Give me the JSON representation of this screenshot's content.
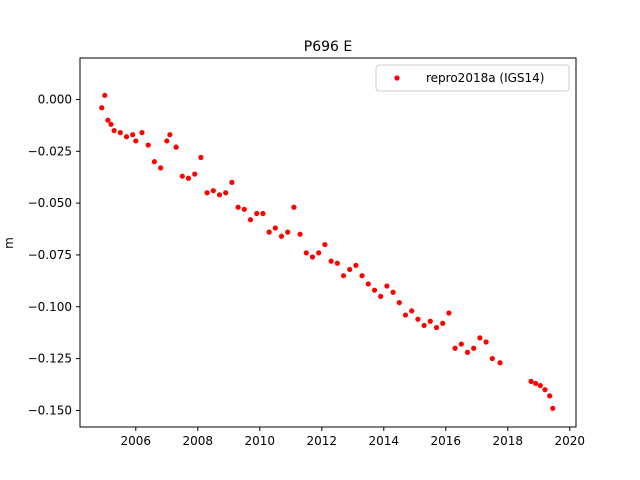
{
  "chart_data": {
    "type": "scatter",
    "title": "P696 E",
    "xlabel": "",
    "ylabel": "m",
    "xlim": [
      2004.2,
      2020.2
    ],
    "ylim": [
      -0.158,
      0.02
    ],
    "x_ticks": [
      2006,
      2008,
      2010,
      2012,
      2014,
      2016,
      2018,
      2020
    ],
    "x_tick_labels": [
      "2006",
      "2008",
      "2010",
      "2012",
      "2014",
      "2016",
      "2018",
      "2020"
    ],
    "y_ticks": [
      0.0,
      -0.025,
      -0.05,
      -0.075,
      -0.1,
      -0.125,
      -0.15
    ],
    "y_tick_labels": [
      "0.000",
      "−0.025",
      "−0.050",
      "−0.075",
      "−0.100",
      "−0.125",
      "−0.150"
    ],
    "grid": false,
    "legend_position": "top-right",
    "series": [
      {
        "name": "repro2018a (IGS14)",
        "color": "#ff0000",
        "marker": "circle",
        "x": [
          2004.9,
          2005.0,
          2005.1,
          2005.2,
          2005.3,
          2005.5,
          2005.7,
          2005.9,
          2006.0,
          2006.2,
          2006.4,
          2006.6,
          2006.8,
          2007.0,
          2007.1,
          2007.3,
          2007.5,
          2007.7,
          2007.9,
          2008.1,
          2008.3,
          2008.5,
          2008.7,
          2008.9,
          2009.1,
          2009.3,
          2009.5,
          2009.7,
          2009.9,
          2010.1,
          2010.3,
          2010.5,
          2010.7,
          2010.9,
          2011.1,
          2011.3,
          2011.5,
          2011.7,
          2011.9,
          2012.1,
          2012.3,
          2012.5,
          2012.7,
          2012.9,
          2013.1,
          2013.3,
          2013.5,
          2013.7,
          2013.9,
          2014.1,
          2014.3,
          2014.5,
          2014.7,
          2014.9,
          2015.1,
          2015.3,
          2015.5,
          2015.7,
          2015.9,
          2016.1,
          2016.3,
          2016.5,
          2016.7,
          2016.9,
          2017.1,
          2017.3,
          2017.5,
          2017.75,
          2018.75,
          2018.9,
          2019.05,
          2019.2,
          2019.35,
          2019.45
        ],
        "y": [
          -0.004,
          0.002,
          -0.01,
          -0.012,
          -0.015,
          -0.016,
          -0.018,
          -0.017,
          -0.02,
          -0.016,
          -0.022,
          -0.03,
          -0.033,
          -0.02,
          -0.017,
          -0.023,
          -0.037,
          -0.038,
          -0.036,
          -0.028,
          -0.045,
          -0.044,
          -0.046,
          -0.045,
          -0.04,
          -0.052,
          -0.053,
          -0.058,
          -0.055,
          -0.055,
          -0.064,
          -0.062,
          -0.066,
          -0.064,
          -0.052,
          -0.065,
          -0.074,
          -0.076,
          -0.074,
          -0.07,
          -0.078,
          -0.079,
          -0.085,
          -0.082,
          -0.08,
          -0.085,
          -0.089,
          -0.092,
          -0.095,
          -0.09,
          -0.093,
          -0.098,
          -0.104,
          -0.102,
          -0.106,
          -0.109,
          -0.107,
          -0.11,
          -0.108,
          -0.103,
          -0.12,
          -0.118,
          -0.122,
          -0.12,
          -0.115,
          -0.117,
          -0.125,
          -0.127,
          -0.136,
          -0.137,
          -0.138,
          -0.14,
          -0.143,
          -0.149
        ]
      }
    ]
  }
}
